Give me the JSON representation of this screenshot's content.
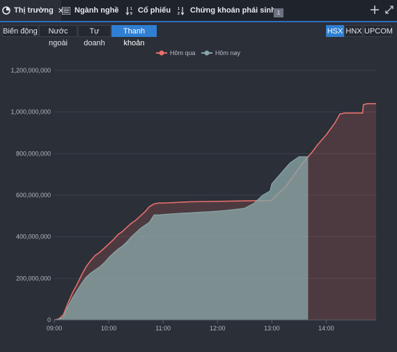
{
  "tabs": [
    {
      "label": "Thị trường",
      "icon": "pie-chart-icon",
      "closable": true,
      "active": true
    },
    {
      "label": "Ngành nghề",
      "icon": "list-icon",
      "closable": false,
      "active": false
    },
    {
      "label": "Cổ phiếu",
      "icon": "sort-numeric-icon",
      "closable": false,
      "active": false
    },
    {
      "label": "Chứng khoán phái sinh",
      "icon": "sort-numeric-icon",
      "closable": false,
      "active": false
    }
  ],
  "tab_badge": "1",
  "top_actions": {
    "add_icon": "plus-icon",
    "expand_icon": "expand-icon"
  },
  "view_buttons": [
    {
      "label": "Biến động",
      "active": false
    },
    {
      "label": "Nước ngoài",
      "active": false
    },
    {
      "label": "Tự doanh",
      "active": false
    },
    {
      "label": "Thanh khoản",
      "active": true
    }
  ],
  "exchange_buttons": [
    {
      "label": "HSX",
      "active": true
    },
    {
      "label": "HNX",
      "active": false
    },
    {
      "label": "UPCOM",
      "active": false
    }
  ],
  "colors": {
    "accent": "#2f7fd3",
    "yesterday": "#e8706b",
    "today": "#8aa6a8"
  },
  "chart_data": {
    "type": "area",
    "title": "",
    "xlabel": "",
    "ylabel": "",
    "legend_position": "top-center",
    "grid": true,
    "x_unit": "minutes since 09:00",
    "x_ticks": [
      "09:00",
      "10:00",
      "11:00",
      "12:00",
      "13:00",
      "14:00"
    ],
    "x_tick_values": [
      0,
      60,
      120,
      180,
      240,
      300
    ],
    "xlim": [
      0,
      355
    ],
    "y_ticks": [
      "0",
      "200,000,000",
      "400,000,000",
      "600,000,000",
      "800,000,000",
      "1,000,000,000",
      "1,200,000,000"
    ],
    "ylim": [
      0,
      1200000000
    ],
    "series": [
      {
        "name": "Hôm qua",
        "x": [
          0,
          5,
          10,
          15,
          20,
          25,
          30,
          35,
          40,
          45,
          50,
          55,
          60,
          65,
          70,
          75,
          80,
          85,
          90,
          95,
          100,
          105,
          110,
          115,
          120,
          125,
          130,
          135,
          140,
          145,
          150,
          240,
          245,
          250,
          255,
          260,
          265,
          270,
          275,
          280,
          285,
          290,
          295,
          300,
          305,
          310,
          315,
          320,
          325,
          330,
          340,
          341,
          345,
          355
        ],
        "values": [
          0,
          5000000,
          25000000,
          80000000,
          130000000,
          170000000,
          215000000,
          255000000,
          285000000,
          310000000,
          325000000,
          345000000,
          365000000,
          385000000,
          410000000,
          425000000,
          445000000,
          465000000,
          480000000,
          500000000,
          520000000,
          545000000,
          558000000,
          562000000,
          562000000,
          563000000,
          564000000,
          565000000,
          566000000,
          567000000,
          568000000,
          575000000,
          600000000,
          620000000,
          640000000,
          670000000,
          700000000,
          730000000,
          760000000,
          785000000,
          810000000,
          840000000,
          865000000,
          890000000,
          920000000,
          950000000,
          990000000,
          995000000,
          995000000,
          995000000,
          995000000,
          1035000000,
          1040000000,
          1040000000
        ]
      },
      {
        "name": "Hôm nay",
        "x": [
          0,
          5,
          10,
          15,
          20,
          25,
          30,
          35,
          40,
          45,
          50,
          55,
          60,
          65,
          70,
          75,
          80,
          85,
          90,
          95,
          100,
          105,
          110,
          115,
          120,
          130,
          140,
          150,
          160,
          170,
          180,
          190,
          200,
          210,
          220,
          230,
          238,
          240,
          245,
          250,
          255,
          260,
          265,
          270,
          275,
          280
        ],
        "values": [
          0,
          3000000,
          15000000,
          65000000,
          105000000,
          140000000,
          175000000,
          205000000,
          225000000,
          240000000,
          255000000,
          275000000,
          300000000,
          320000000,
          340000000,
          355000000,
          375000000,
          400000000,
          420000000,
          440000000,
          455000000,
          470000000,
          505000000,
          505000000,
          507000000,
          510000000,
          513000000,
          515000000,
          518000000,
          520000000,
          523000000,
          527000000,
          532000000,
          537000000,
          560000000,
          600000000,
          620000000,
          655000000,
          680000000,
          705000000,
          730000000,
          755000000,
          770000000,
          785000000,
          785000000,
          785000000
        ]
      }
    ]
  }
}
